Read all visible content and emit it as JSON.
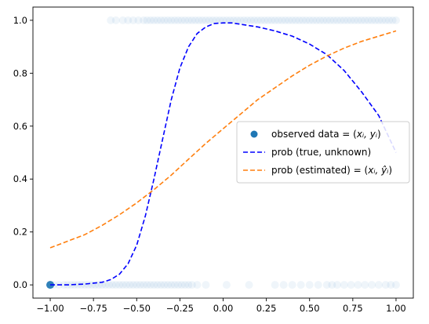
{
  "chart_data": {
    "type": "line",
    "title": "",
    "xlabel": "",
    "ylabel": "",
    "xlim": [
      -1.1,
      1.1
    ],
    "ylim": [
      -0.05,
      1.05
    ],
    "xticks": [
      -1.0,
      -0.75,
      -0.5,
      -0.25,
      0.0,
      0.25,
      0.5,
      0.75,
      1.0
    ],
    "xtick_labels": [
      "−1.00",
      "−0.75",
      "−0.50",
      "−0.25",
      "0.00",
      "0.25",
      "0.50",
      "0.75",
      "1.00"
    ],
    "yticks": [
      0.0,
      0.2,
      0.4,
      0.6,
      0.8,
      1.0
    ],
    "ytick_labels": [
      "0.0",
      "0.2",
      "0.4",
      "0.6",
      "0.8",
      "1.0"
    ],
    "grid": false,
    "legend": {
      "placement": "center-right",
      "entries": [
        {
          "label_main": "observed data = (",
          "label_math": "xᵢ, yᵢ",
          "label_end": ")",
          "style": "marker",
          "color": "#1f77b4"
        },
        {
          "label_main": "prob (true, unknown)",
          "label_math": "",
          "label_end": "",
          "style": "dashed",
          "color": "#0000ff"
        },
        {
          "label_main": "prob (estimated) = (",
          "label_math": "xᵢ, ŷᵢ",
          "label_end": ")",
          "style": "dashed",
          "color": "#ff7f0e"
        }
      ]
    },
    "series": [
      {
        "name": "prob (true, unknown)",
        "color": "#0000ff",
        "style": "dashed",
        "x": [
          -1.0,
          -0.9,
          -0.8,
          -0.7,
          -0.65,
          -0.6,
          -0.55,
          -0.5,
          -0.45,
          -0.4,
          -0.35,
          -0.3,
          -0.25,
          -0.2,
          -0.15,
          -0.1,
          -0.05,
          0.0,
          0.05,
          0.1,
          0.2,
          0.3,
          0.4,
          0.5,
          0.6,
          0.7,
          0.8,
          0.9,
          1.0
        ],
        "y": [
          0.0,
          0.0,
          0.003,
          0.01,
          0.02,
          0.04,
          0.08,
          0.15,
          0.26,
          0.4,
          0.55,
          0.7,
          0.82,
          0.9,
          0.95,
          0.975,
          0.988,
          0.99,
          0.99,
          0.985,
          0.975,
          0.96,
          0.94,
          0.91,
          0.87,
          0.81,
          0.73,
          0.64,
          0.5
        ]
      },
      {
        "name": "prob (estimated) = (xᵢ, ŷᵢ)",
        "color": "#ff7f0e",
        "style": "dashed",
        "x": [
          -1.0,
          -0.9,
          -0.8,
          -0.7,
          -0.6,
          -0.5,
          -0.4,
          -0.3,
          -0.2,
          -0.1,
          0.0,
          0.1,
          0.2,
          0.3,
          0.4,
          0.5,
          0.6,
          0.7,
          0.8,
          0.9,
          1.0
        ],
        "y": [
          0.14,
          0.165,
          0.19,
          0.225,
          0.265,
          0.31,
          0.36,
          0.415,
          0.475,
          0.535,
          0.59,
          0.645,
          0.7,
          0.745,
          0.79,
          0.83,
          0.865,
          0.895,
          0.92,
          0.94,
          0.96
        ]
      }
    ],
    "scatter": {
      "name": "observed data = (xᵢ, yᵢ)",
      "color": "#1f77b4",
      "x_y1": [
        -0.65,
        -0.62,
        -0.58,
        -0.55,
        -0.52,
        -0.49,
        -0.46,
        -0.44,
        -0.42,
        -0.4,
        -0.38,
        -0.36,
        -0.34,
        -0.32,
        -0.3,
        -0.28,
        -0.26,
        -0.24,
        -0.22,
        -0.2,
        -0.18,
        -0.16,
        -0.14,
        -0.12,
        -0.1,
        -0.08,
        -0.06,
        -0.04,
        -0.02,
        0.0,
        0.02,
        0.04,
        0.06,
        0.08,
        0.1,
        0.12,
        0.14,
        0.16,
        0.18,
        0.2,
        0.22,
        0.24,
        0.26,
        0.28,
        0.3,
        0.32,
        0.34,
        0.36,
        0.38,
        0.4,
        0.42,
        0.44,
        0.46,
        0.48,
        0.5,
        0.52,
        0.54,
        0.56,
        0.58,
        0.6,
        0.62,
        0.64,
        0.66,
        0.68,
        0.7,
        0.72,
        0.74,
        0.76,
        0.78,
        0.8,
        0.82,
        0.84,
        0.86,
        0.88,
        0.9,
        0.92,
        0.94,
        0.96,
        0.98,
        1.0
      ],
      "x_y0": [
        -1.0,
        -1.0,
        -1.0,
        -1.0,
        -0.98,
        -0.95,
        -0.92,
        -0.9,
        -0.88,
        -0.86,
        -0.84,
        -0.82,
        -0.8,
        -0.78,
        -0.76,
        -0.74,
        -0.72,
        -0.7,
        -0.68,
        -0.66,
        -0.64,
        -0.62,
        -0.6,
        -0.58,
        -0.56,
        -0.54,
        -0.52,
        -0.5,
        -0.48,
        -0.46,
        -0.44,
        -0.42,
        -0.4,
        -0.38,
        -0.36,
        -0.34,
        -0.32,
        -0.3,
        -0.28,
        -0.26,
        -0.24,
        -0.22,
        -0.2,
        -0.18,
        -0.15,
        -0.1,
        0.02,
        0.15,
        0.3,
        0.35,
        0.4,
        0.45,
        0.5,
        0.55,
        0.6,
        0.63,
        0.66,
        0.7,
        0.74,
        0.78,
        0.82,
        0.86,
        0.9,
        0.94,
        0.97,
        1.0
      ]
    }
  }
}
